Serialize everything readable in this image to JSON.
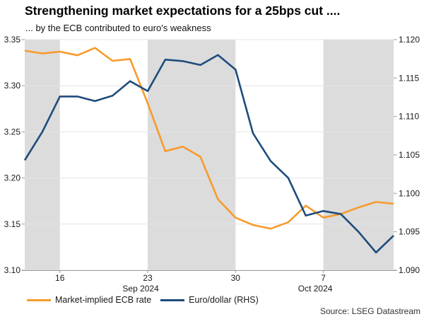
{
  "title": "Strengthening market expectations for a 25bps cut ....",
  "subtitle": "... by the ECB contributed to euro's weakness",
  "source": "Source: LSEG Datastream",
  "colors": {
    "ecb_rate_line": "#F79B2C",
    "eurusd_line": "#1E4C7C",
    "band": "#DCDCDC",
    "grid": "#E4E4E4",
    "axis": "#9A9A9A",
    "text": "#1A1A1A"
  },
  "chart_data": {
    "type": "line",
    "title": "Strengthening market expectations for a 25bps cut ....",
    "subtitle": "... by the ECB contributed to euro's weakness",
    "x_dates": [
      "12 Sep 2024",
      "13 Sep 2024",
      "16 Sep 2024",
      "17 Sep 2024",
      "18 Sep 2024",
      "19 Sep 2024",
      "20 Sep 2024",
      "23 Sep 2024",
      "24 Sep 2024",
      "25 Sep 2024",
      "26 Sep 2024",
      "27 Sep 2024",
      "30 Sep 2024",
      "1 Oct 2024",
      "2 Oct 2024",
      "3 Oct 2024",
      "4 Oct 2024",
      "7 Oct 2024",
      "8 Oct 2024",
      "9 Oct 2024",
      "10 Oct 2024",
      "11 Oct 2024"
    ],
    "series": [
      {
        "name": "Market-implied ECB rate",
        "axis": "left",
        "color": "#F79B2C",
        "values": [
          3.338,
          3.335,
          3.337,
          3.333,
          3.341,
          3.327,
          3.329,
          3.281,
          3.229,
          3.234,
          3.223,
          3.177,
          3.157,
          3.149,
          3.145,
          3.152,
          3.17,
          3.157,
          3.161,
          3.168,
          3.174,
          3.172
        ]
      },
      {
        "name": "Euro/dollar (RHS)",
        "axis": "right",
        "color": "#1E4C7C",
        "values": [
          1.1043,
          1.108,
          1.1126,
          1.1126,
          1.112,
          1.1127,
          1.1146,
          1.1133,
          1.1174,
          1.1172,
          1.1167,
          1.118,
          1.1161,
          1.1078,
          1.1042,
          1.102,
          1.0971,
          1.0977,
          1.0973,
          1.095,
          1.0923,
          1.0945
        ]
      }
    ],
    "left_axis": {
      "min": 3.1,
      "max": 3.35,
      "ticks": [
        "3.35",
        "3.30",
        "3.25",
        "3.20",
        "3.15",
        "3.10"
      ]
    },
    "right_axis": {
      "min": 1.09,
      "max": 1.12,
      "ticks": [
        "1.120",
        "1.115",
        "1.110",
        "1.105",
        "1.100",
        "1.095",
        "1.090"
      ]
    },
    "x_ticks": [
      {
        "i": 2,
        "label": "16"
      },
      {
        "i": 7,
        "label": "23"
      },
      {
        "i": 12,
        "label": "30"
      },
      {
        "i": 17,
        "label": "7"
      }
    ],
    "month_labels": [
      {
        "i": 6.6,
        "label": "Sep 2024"
      },
      {
        "i": 16.54,
        "label": "Oct 2024"
      }
    ],
    "bands": [
      [
        0,
        2
      ],
      [
        7,
        12
      ],
      [
        17,
        21
      ]
    ],
    "grid": true,
    "legend_position": "bottom-left"
  }
}
